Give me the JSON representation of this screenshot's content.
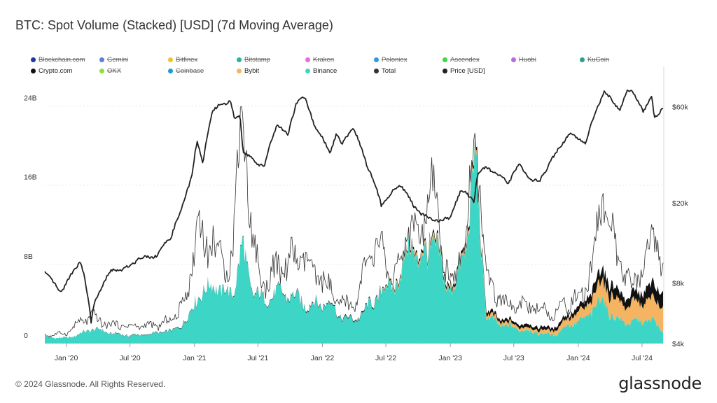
{
  "title": "BTC: Spot Volume (Stacked) [USD] (7d Moving Average)",
  "footer": "© 2024 Glassnode. All Rights Reserved.",
  "logo": "glassnode",
  "legend": [
    {
      "label": "Blockchain.com",
      "color": "#1a3a9c",
      "active": false
    },
    {
      "label": "Gemini",
      "color": "#5b7fd6",
      "active": false
    },
    {
      "label": "Bitfinex",
      "color": "#f2c12e",
      "active": false
    },
    {
      "label": "Bitstamp",
      "color": "#2bb3a0",
      "active": false
    },
    {
      "label": "Kraken",
      "color": "#e36de3",
      "active": false
    },
    {
      "label": "Poloniex",
      "color": "#2d9de0",
      "active": false
    },
    {
      "label": "Ascendex",
      "color": "#3fd64a",
      "active": false
    },
    {
      "label": "Huobi",
      "color": "#b36cdb",
      "active": false
    },
    {
      "label": "KuCoin",
      "color": "#2e9e8a",
      "active": false
    },
    {
      "label": "Crypto.com",
      "color": "#111111",
      "active": true
    },
    {
      "label": "OKX",
      "color": "#8de03c",
      "active": false
    },
    {
      "label": "Coinbase",
      "color": "#1a9bd6",
      "active": false
    },
    {
      "label": "Bybit",
      "color": "#f5b461",
      "active": true
    },
    {
      "label": "Binance",
      "color": "#3dd6c6",
      "active": true
    },
    {
      "label": "Total",
      "color": "#333333",
      "active": true
    },
    {
      "label": "Price [USD]",
      "color": "#222222",
      "active": true
    }
  ],
  "chart_data": {
    "type": "area",
    "stacked": true,
    "x_range": [
      "2019-11-01",
      "2024-09-01"
    ],
    "x_ticks": [
      {
        "date": "2020-01-01",
        "label": "Jan '20"
      },
      {
        "date": "2020-07-01",
        "label": "Jul '20"
      },
      {
        "date": "2021-01-01",
        "label": "Jan '21"
      },
      {
        "date": "2021-07-01",
        "label": "Jul '21"
      },
      {
        "date": "2022-01-01",
        "label": "Jan '22"
      },
      {
        "date": "2022-07-01",
        "label": "Jul '22"
      },
      {
        "date": "2023-01-01",
        "label": "Jan '23"
      },
      {
        "date": "2023-07-01",
        "label": "Jul '23"
      },
      {
        "date": "2024-01-01",
        "label": "Jan '24"
      },
      {
        "date": "2024-07-01",
        "label": "Jul '24"
      }
    ],
    "y_left": {
      "unit": "USD",
      "range": [
        0,
        28
      ],
      "scale_label": "B",
      "ticks": [
        {
          "value": 0,
          "label": "0"
        },
        {
          "value": 8,
          "label": "8B"
        },
        {
          "value": 16,
          "label": "16B"
        },
        {
          "value": 24,
          "label": "24B"
        }
      ]
    },
    "y_right": {
      "unit": "USD",
      "scale": "log",
      "range": [
        4000,
        95000
      ],
      "ticks": [
        {
          "value": 4000,
          "label": "$4k"
        },
        {
          "value": 8000,
          "label": "$8k"
        },
        {
          "value": 20000,
          "label": "$20k"
        },
        {
          "value": 60000,
          "label": "$60k"
        }
      ]
    },
    "series": [
      {
        "name": "Binance",
        "color": "#3dd6c6",
        "axis": "left",
        "points": [
          [
            "2019-11-01",
            0.6
          ],
          [
            "2020-01-01",
            0.6
          ],
          [
            "2020-03-15",
            1.4
          ],
          [
            "2020-05-01",
            1.0
          ],
          [
            "2020-07-01",
            0.9
          ],
          [
            "2020-09-01",
            0.9
          ],
          [
            "2020-11-01",
            1.2
          ],
          [
            "2020-12-15",
            2.8
          ],
          [
            "2021-01-10",
            5.6
          ],
          [
            "2021-02-01",
            5.0
          ],
          [
            "2021-02-25",
            5.8
          ],
          [
            "2021-03-20",
            4.5
          ],
          [
            "2021-04-20",
            5.0
          ],
          [
            "2021-05-19",
            10.2
          ],
          [
            "2021-06-15",
            6.0
          ],
          [
            "2021-07-15",
            4.5
          ],
          [
            "2021-09-01",
            4.6
          ],
          [
            "2021-10-20",
            4.5
          ],
          [
            "2021-12-01",
            4.3
          ],
          [
            "2022-01-22",
            4.1
          ],
          [
            "2022-02-15",
            2.5
          ],
          [
            "2022-04-01",
            2.2
          ],
          [
            "2022-05-12",
            4.0
          ],
          [
            "2022-06-15",
            5.5
          ],
          [
            "2022-07-15",
            5.4
          ],
          [
            "2022-08-15",
            6.0
          ],
          [
            "2022-09-10",
            10.5
          ],
          [
            "2022-10-01",
            7.8
          ],
          [
            "2022-11-09",
            12.0
          ],
          [
            "2022-12-20",
            6.0
          ],
          [
            "2023-01-15",
            5.0
          ],
          [
            "2023-02-15",
            9.5
          ],
          [
            "2023-03-15",
            18.0
          ],
          [
            "2023-04-15",
            2.9
          ],
          [
            "2023-06-01",
            1.9
          ],
          [
            "2023-07-15",
            1.3
          ],
          [
            "2023-09-01",
            1.1
          ],
          [
            "2023-10-25",
            1.0
          ],
          [
            "2023-12-01",
            1.8
          ],
          [
            "2024-01-15",
            2.1
          ],
          [
            "2024-02-15",
            3.5
          ],
          [
            "2024-03-12",
            4.9
          ],
          [
            "2024-04-15",
            2.7
          ],
          [
            "2024-06-01",
            2.0
          ],
          [
            "2024-08-05",
            2.2
          ],
          [
            "2024-09-01",
            1.1
          ]
        ]
      },
      {
        "name": "Bybit",
        "color": "#f5b461",
        "axis": "left",
        "points": [
          [
            "2019-11-01",
            0.0
          ],
          [
            "2022-06-01",
            0.0
          ],
          [
            "2022-09-10",
            0.3
          ],
          [
            "2023-01-15",
            0.2
          ],
          [
            "2023-03-15",
            0.4
          ],
          [
            "2023-06-01",
            0.3
          ],
          [
            "2023-10-25",
            0.4
          ],
          [
            "2024-01-15",
            1.0
          ],
          [
            "2024-03-12",
            2.0
          ],
          [
            "2024-05-15",
            1.6
          ],
          [
            "2024-08-05",
            2.4
          ],
          [
            "2024-09-01",
            2.6
          ]
        ]
      },
      {
        "name": "Crypto.com",
        "color": "#111111",
        "axis": "left",
        "points": [
          [
            "2019-11-01",
            0.0
          ],
          [
            "2022-06-01",
            0.1
          ],
          [
            "2023-01-15",
            0.3
          ],
          [
            "2023-06-01",
            0.3
          ],
          [
            "2023-10-25",
            0.3
          ],
          [
            "2024-01-15",
            0.6
          ],
          [
            "2024-03-12",
            1.1
          ],
          [
            "2024-05-15",
            0.9
          ],
          [
            "2024-08-05",
            1.4
          ],
          [
            "2024-09-01",
            1.3
          ]
        ]
      },
      {
        "name": "Total",
        "color": "#333333",
        "axis": "left",
        "points": [
          [
            "2019-11-01",
            0.9
          ],
          [
            "2020-01-01",
            0.9
          ],
          [
            "2020-03-15",
            3.1
          ],
          [
            "2020-05-01",
            2.0
          ],
          [
            "2020-07-01",
            1.5
          ],
          [
            "2020-09-01",
            2.0
          ],
          [
            "2020-11-01",
            2.5
          ],
          [
            "2020-12-15",
            4.5
          ],
          [
            "2021-01-10",
            12.4
          ],
          [
            "2021-02-01",
            9.0
          ],
          [
            "2021-02-25",
            13.2
          ],
          [
            "2021-03-20",
            8.0
          ],
          [
            "2021-04-20",
            10.0
          ],
          [
            "2021-05-19",
            22.5
          ],
          [
            "2021-06-15",
            9.0
          ],
          [
            "2021-07-15",
            6.0
          ],
          [
            "2021-09-01",
            8.8
          ],
          [
            "2021-10-20",
            8.4
          ],
          [
            "2021-12-01",
            6.6
          ],
          [
            "2022-01-22",
            6.0
          ],
          [
            "2022-02-15",
            4.6
          ],
          [
            "2022-04-01",
            3.8
          ],
          [
            "2022-05-12",
            7.5
          ],
          [
            "2022-06-15",
            9.5
          ],
          [
            "2022-07-15",
            7.5
          ],
          [
            "2022-08-15",
            8.0
          ],
          [
            "2022-09-10",
            12.5
          ],
          [
            "2022-10-01",
            9.0
          ],
          [
            "2022-11-09",
            14.0
          ],
          [
            "2022-12-20",
            8.0
          ],
          [
            "2023-01-15",
            6.5
          ],
          [
            "2023-02-15",
            11.0
          ],
          [
            "2023-03-15",
            20.5
          ],
          [
            "2023-04-15",
            5.5
          ],
          [
            "2023-06-01",
            4.0
          ],
          [
            "2023-07-15",
            4.6
          ],
          [
            "2023-09-01",
            3.5
          ],
          [
            "2023-10-25",
            2.6
          ],
          [
            "2023-12-01",
            4.5
          ],
          [
            "2024-01-15",
            5.5
          ],
          [
            "2024-02-15",
            9.0
          ],
          [
            "2024-03-12",
            14.0
          ],
          [
            "2024-04-15",
            8.5
          ],
          [
            "2024-06-01",
            6.0
          ],
          [
            "2024-08-05",
            11.5
          ],
          [
            "2024-09-01",
            6.0
          ]
        ]
      },
      {
        "name": "Price [USD]",
        "color": "#222222",
        "axis": "right",
        "points": [
          [
            "2019-11-01",
            9100
          ],
          [
            "2019-12-15",
            7200
          ],
          [
            "2020-02-12",
            10300
          ],
          [
            "2020-03-12",
            5000
          ],
          [
            "2020-03-20",
            6200
          ],
          [
            "2020-05-10",
            9300
          ],
          [
            "2020-06-15",
            9400
          ],
          [
            "2020-07-25",
            10600
          ],
          [
            "2020-09-15",
            10800
          ],
          [
            "2020-10-25",
            13500
          ],
          [
            "2020-11-25",
            18500
          ],
          [
            "2020-12-25",
            27500
          ],
          [
            "2021-01-08",
            40000
          ],
          [
            "2021-01-25",
            31500
          ],
          [
            "2021-02-20",
            55000
          ],
          [
            "2021-03-13",
            60500
          ],
          [
            "2021-04-14",
            63500
          ],
          [
            "2021-04-25",
            52000
          ],
          [
            "2021-05-10",
            56000
          ],
          [
            "2021-05-19",
            37000
          ],
          [
            "2021-06-21",
            32000
          ],
          [
            "2021-07-20",
            30500
          ],
          [
            "2021-08-25",
            48500
          ],
          [
            "2021-09-25",
            43000
          ],
          [
            "2021-10-20",
            64000
          ],
          [
            "2021-11-10",
            67500
          ],
          [
            "2021-12-10",
            48500
          ],
          [
            "2022-01-22",
            35000
          ],
          [
            "2022-02-10",
            43500
          ],
          [
            "2022-02-25",
            38500
          ],
          [
            "2022-03-28",
            47500
          ],
          [
            "2022-05-09",
            31000
          ],
          [
            "2022-06-18",
            19500
          ],
          [
            "2022-08-12",
            24500
          ],
          [
            "2022-09-20",
            19000
          ],
          [
            "2022-11-09",
            16500
          ],
          [
            "2022-12-31",
            16500
          ],
          [
            "2023-01-31",
            23000
          ],
          [
            "2023-03-10",
            20500
          ],
          [
            "2023-03-20",
            28000
          ],
          [
            "2023-04-14",
            30500
          ],
          [
            "2023-06-15",
            25000
          ],
          [
            "2023-07-15",
            30500
          ],
          [
            "2023-08-17",
            26000
          ],
          [
            "2023-09-11",
            25500
          ],
          [
            "2023-10-25",
            34500
          ],
          [
            "2023-12-05",
            43500
          ],
          [
            "2024-01-23",
            39500
          ],
          [
            "2024-02-28",
            62000
          ],
          [
            "2024-03-14",
            72000
          ],
          [
            "2024-04-30",
            58000
          ],
          [
            "2024-05-20",
            71000
          ],
          [
            "2024-06-05",
            71000
          ],
          [
            "2024-07-05",
            55500
          ],
          [
            "2024-07-29",
            69000
          ],
          [
            "2024-08-05",
            53000
          ],
          [
            "2024-09-01",
            59000
          ]
        ]
      }
    ],
    "grid": true,
    "legend_position": "top-left"
  }
}
